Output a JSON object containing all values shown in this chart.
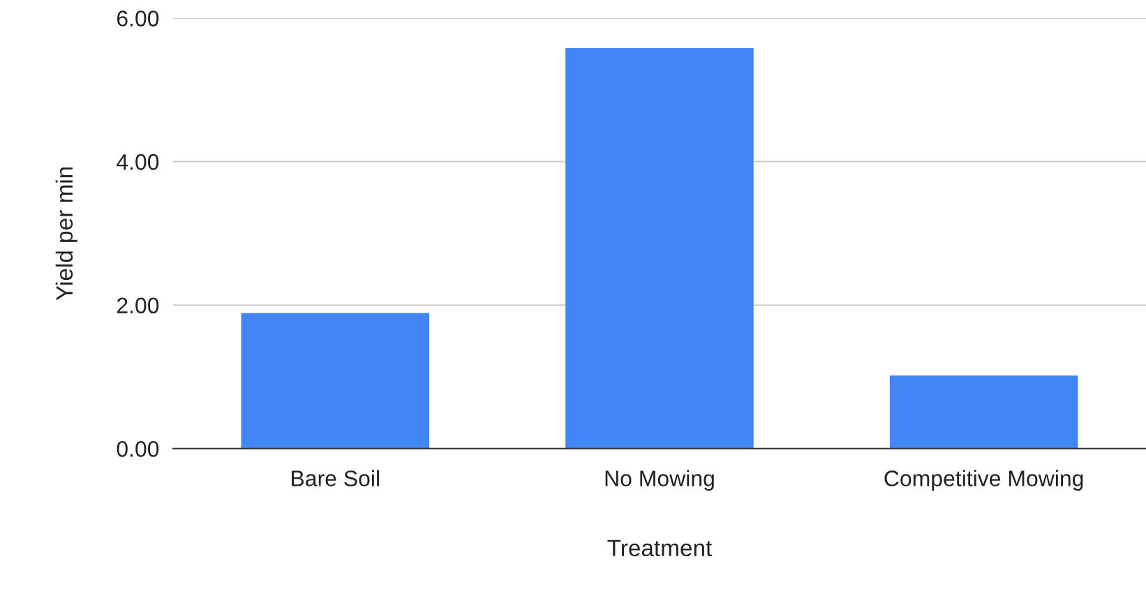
{
  "chart_data": {
    "type": "bar",
    "xlabel": "Treatment",
    "ylabel": "Yield per min",
    "categories": [
      "Bare Soil",
      "No Mowing",
      "Competitive Mowing"
    ],
    "values": [
      1.89,
      5.58,
      1.02
    ],
    "color": "#4285f4",
    "ylim": [
      0,
      6
    ],
    "yticks": [
      {
        "value": 0,
        "label": "0.00"
      },
      {
        "value": 2,
        "label": "2.00"
      },
      {
        "value": 4,
        "label": "4.00"
      },
      {
        "value": 6,
        "label": "6.00"
      }
    ],
    "grid": "y",
    "legend": false
  }
}
